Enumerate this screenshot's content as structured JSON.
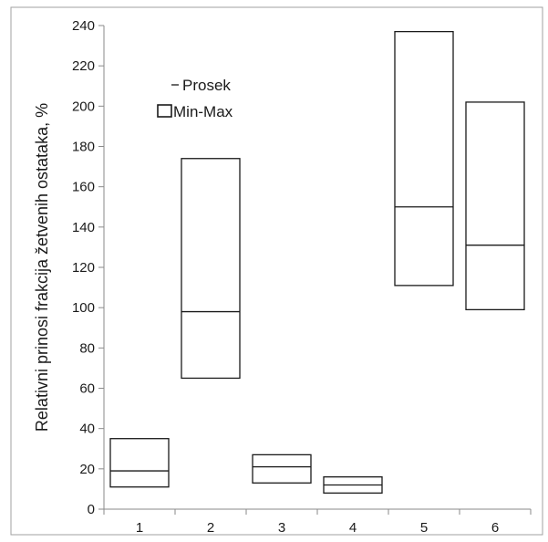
{
  "chart_data": {
    "type": "box",
    "categories": [
      "1",
      "2",
      "3",
      "4",
      "5",
      "6"
    ],
    "series": [
      {
        "name": "Prosek",
        "values": [
          19,
          98,
          21,
          12,
          150,
          131
        ]
      },
      {
        "name": "Min-Max",
        "min": [
          11,
          65,
          13,
          8,
          111,
          99
        ],
        "max": [
          35,
          174,
          27,
          16,
          237,
          202
        ]
      }
    ],
    "ylabel": "Relativni prinosi frakcija žetvenih ostataka, %",
    "xlabel": "",
    "title": "",
    "ylim": [
      0,
      240
    ],
    "yticks": [
      0,
      20,
      40,
      60,
      80,
      100,
      120,
      140,
      160,
      180,
      200,
      220,
      240
    ],
    "legend": {
      "placement": "top-left",
      "mean_label": "Prosek",
      "range_label": "Min-Max"
    },
    "grid": false,
    "colors": {
      "stroke": "#1a1a1a",
      "fill": "#ffffff",
      "frame": "#a0a0a0"
    }
  }
}
